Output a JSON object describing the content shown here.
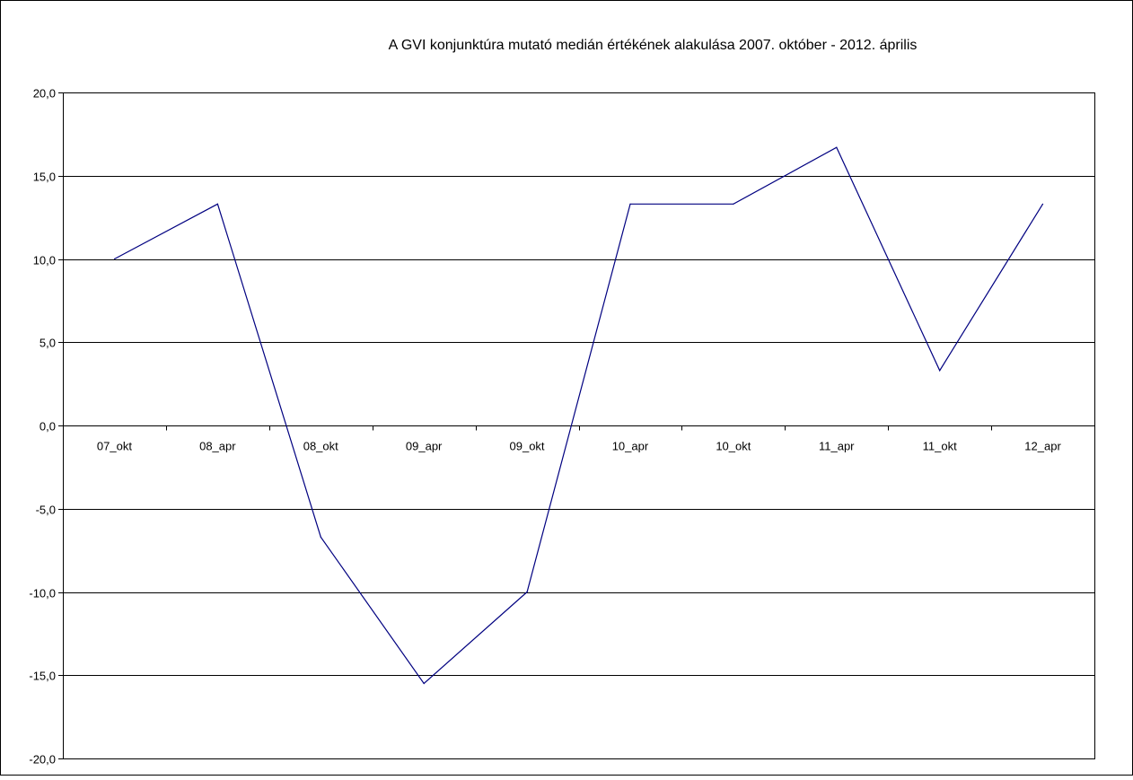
{
  "chart_data": {
    "type": "line",
    "title": "A GVI konjunktúra mutató medián értékének alakulása 2007. október - 2012. április",
    "xlabel": "",
    "ylabel": "",
    "categories": [
      "07_okt",
      "08_apr",
      "08_okt",
      "09_apr",
      "09_okt",
      "10_apr",
      "10_okt",
      "11_apr",
      "11_okt",
      "12_apr"
    ],
    "series": [
      {
        "values": [
          10.0,
          13.3,
          -6.7,
          -15.5,
          -10.0,
          13.3,
          13.3,
          16.7,
          3.3,
          13.3
        ],
        "color": "#000080"
      }
    ],
    "ylim": [
      -20,
      20
    ],
    "yticks": [
      20,
      15,
      10,
      5,
      0,
      -5,
      -10,
      -15,
      -20
    ],
    "ytick_labels": [
      "20,0",
      "15,0",
      "10,0",
      "5,0",
      "0,0",
      "-5,0",
      "-10,0",
      "-15,0",
      "-20,0"
    ],
    "grid": true,
    "legend": "none",
    "colors": {
      "line": "#000080",
      "grid": "#000000",
      "frame": "#000000",
      "background": "#ffffff"
    }
  }
}
